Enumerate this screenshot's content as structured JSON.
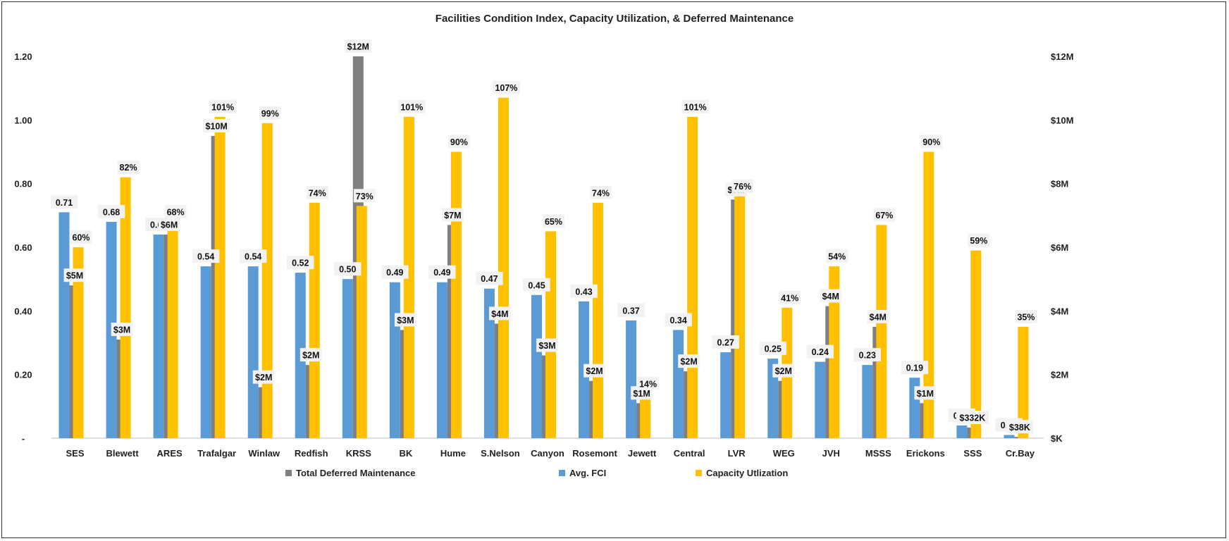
{
  "chart_data": {
    "type": "bar",
    "title": "Facilities Condition Index, Capacity Utilization, & Deferred Maintenance",
    "categories": [
      "SES",
      "Blewett",
      "ARES",
      "Trafalgar",
      "Winlaw",
      "Redfish",
      "KRSS",
      "BK",
      "Hume",
      "S.Nelson",
      "Canyon",
      "Rosemont",
      "Jewett",
      "Central",
      "LVR",
      "WEG",
      "JVH",
      "MSSS",
      "Erickons",
      "SSS",
      "Cr.Bay"
    ],
    "series": [
      {
        "name": "Total Deferred Maintenance",
        "axis": "right",
        "color": "#7f7f7f",
        "values": [
          4.8,
          3.1,
          6.4,
          9.5,
          1.6,
          2.3,
          12.0,
          3.4,
          6.7,
          3.6,
          2.6,
          1.8,
          1.1,
          2.1,
          7.5,
          1.8,
          4.15,
          3.5,
          1.1,
          0.332,
          0.038
        ],
        "labels": [
          "$5M",
          "$3M",
          "$6M",
          "$10M",
          "$2M",
          "$2M",
          "$12M",
          "$3M",
          "$7M",
          "$4M",
          "$3M",
          "$2M",
          "$1M",
          "$2M",
          "$7M",
          "$2M",
          "$4M",
          "$4M",
          "$1M",
          "$332K",
          "$38K"
        ]
      },
      {
        "name": "Avg. FCI",
        "axis": "left",
        "color": "#5b9bd5",
        "values": [
          0.71,
          0.68,
          0.64,
          0.54,
          0.54,
          0.52,
          0.5,
          0.49,
          0.49,
          0.47,
          0.45,
          0.43,
          0.37,
          0.34,
          0.27,
          0.25,
          0.24,
          0.23,
          0.19,
          0.04,
          0.01
        ],
        "labels": [
          "0.71",
          "0.68",
          "0.64",
          "0.54",
          "0.54",
          "0.52",
          "0.50",
          "0.49",
          "0.49",
          "0.47",
          "0.45",
          "0.43",
          "0.37",
          "0.34",
          "0.27",
          "0.25",
          "0.24",
          "0.23",
          "0.19",
          "0.04",
          "0.01"
        ]
      },
      {
        "name": "Capacity Utlization",
        "axis": "left",
        "color": "#ffc000",
        "values": [
          0.6,
          0.82,
          0.68,
          1.01,
          0.99,
          0.74,
          0.73,
          1.01,
          0.9,
          1.07,
          0.65,
          0.74,
          0.14,
          1.01,
          0.76,
          0.41,
          0.54,
          0.67,
          0.9,
          0.59,
          0.35
        ],
        "labels": [
          "60%",
          "82%",
          "68%",
          "101%",
          "99%",
          "74%",
          "73%",
          "101%",
          "90%",
          "107%",
          "65%",
          "74%",
          "14%",
          "101%",
          "76%",
          "41%",
          "54%",
          "67%",
          "90%",
          "59%",
          "35%"
        ]
      }
    ],
    "y_left": {
      "min": 0,
      "max": 1.2,
      "ticks": [
        "-",
        "0.20",
        "0.40",
        "0.60",
        "0.80",
        "1.00",
        "1.20"
      ]
    },
    "y_right": {
      "min": 0,
      "max": 12,
      "unit": "$M",
      "ticks": [
        "$K",
        "$2M",
        "$4M",
        "$6M",
        "$8M",
        "$10M",
        "$12M"
      ]
    },
    "grid": false,
    "legend": "bottom"
  },
  "legend": {
    "items": [
      {
        "label": "Total Deferred Maintenance",
        "color": "#7f7f7f"
      },
      {
        "label": "Avg. FCI",
        "color": "#5b9bd5"
      },
      {
        "label": "Capacity Utlization",
        "color": "#ffc000"
      }
    ]
  }
}
